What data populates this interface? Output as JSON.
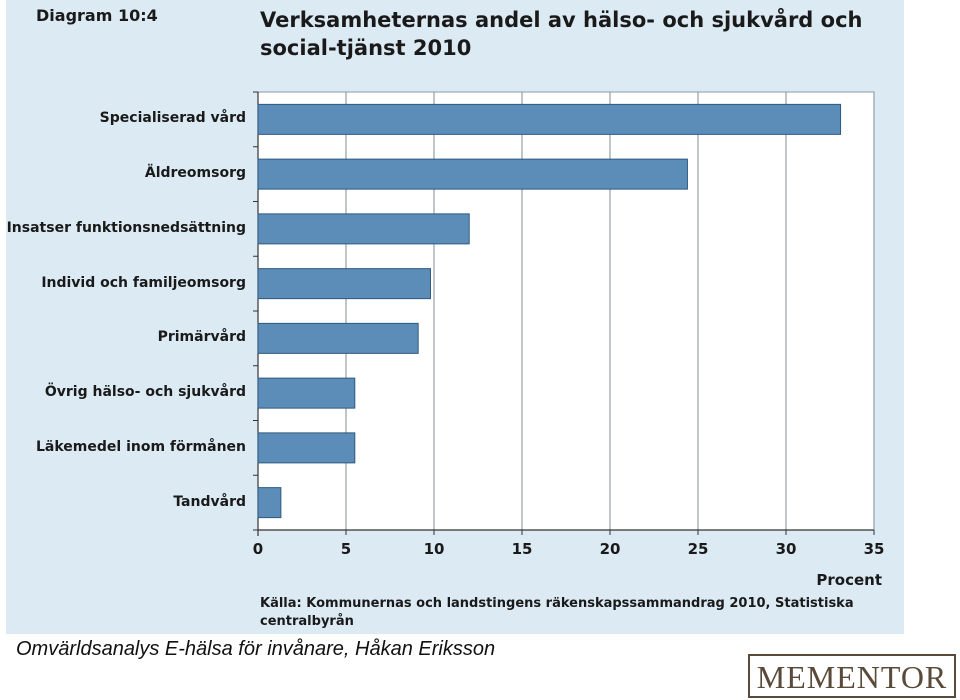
{
  "header": {
    "diagram_label": "Diagram 10:4",
    "title": "Verksamheternas andel av hälso- och sjukvård och social-tjänst 2010"
  },
  "chart_data": {
    "type": "bar",
    "orientation": "horizontal",
    "title": "Verksamheternas andel av hälso- och sjukvård och social-tjänst 2010",
    "categories": [
      "Specialiserad vård",
      "Äldreomsorg",
      "Insatser funktionsnedsättning",
      "Individ och familjeomsorg",
      "Primärvård",
      "Övrig hälso- och sjukvård",
      "Läkemedel inom förmånen",
      "Tandvård"
    ],
    "values": [
      33.1,
      24.4,
      12.0,
      9.8,
      9.1,
      5.5,
      5.5,
      1.3
    ],
    "xlabel": "Procent",
    "ylabel": "",
    "xlim": [
      0,
      35
    ],
    "xticks": [
      0,
      5,
      10,
      15,
      20,
      25,
      30,
      35
    ],
    "grid": "vertical",
    "bar_color": "#5b8db8",
    "bar_edge_color": "#2e5a80"
  },
  "source_note": "Källa: Kommunernas och landstingens räkenskapssammandrag 2010, Statistiska centralbyrån",
  "footer": {
    "caption": "Omvärldsanalys E-hälsa för invånare, Håkan Eriksson",
    "logo_text": "MEMENTOR"
  }
}
